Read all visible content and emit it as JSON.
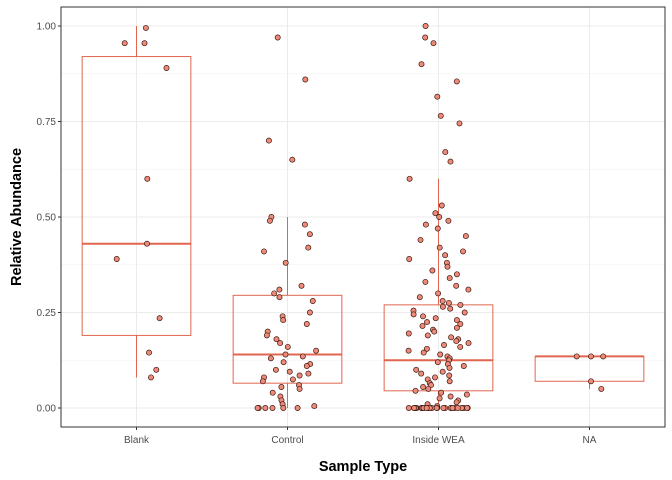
{
  "chart_data": {
    "type": "box",
    "title": "",
    "xlabel": "Sample Type",
    "ylabel": "Relative Abundance",
    "ylim": [
      -0.04,
      1.04
    ],
    "y_ticks": [
      0.0,
      0.25,
      0.5,
      0.75,
      1.0
    ],
    "y_tick_labels": [
      "0.00",
      "0.25",
      "0.50",
      "0.75",
      "1.00"
    ],
    "grid": true,
    "categories": [
      "Blank",
      "Control",
      "Inside WEA",
      "NA"
    ],
    "box_color": "#e0664f",
    "point_fill": "#f08a78",
    "point_stroke": "#3a1a14",
    "boxes": [
      {
        "category": "Blank",
        "lower_whisker": 0.08,
        "q1": 0.19,
        "median": 0.43,
        "q3": 0.92,
        "upper_whisker": 1.0
      },
      {
        "category": "Control",
        "lower_whisker": 0.0,
        "q1": 0.065,
        "median": 0.14,
        "q3": 0.295,
        "upper_whisker": 0.5
      },
      {
        "category": "Inside WEA",
        "lower_whisker": 0.0,
        "q1": 0.045,
        "median": 0.125,
        "q3": 0.27,
        "upper_whisker": 0.6
      },
      {
        "category": "NA",
        "lower_whisker": 0.05,
        "q1": 0.07,
        "median": 0.135,
        "q3": 0.135,
        "upper_whisker": 0.135
      }
    ],
    "points": [
      {
        "category": "Blank",
        "values": [
          0.995,
          0.955,
          0.955,
          0.89,
          0.6,
          0.43,
          0.39,
          0.235,
          0.145,
          0.1,
          0.08
        ]
      },
      {
        "category": "Control",
        "values": [
          0.97,
          0.86,
          0.7,
          0.65,
          0.5,
          0.49,
          0.48,
          0.455,
          0.42,
          0.41,
          0.38,
          0.32,
          0.31,
          0.3,
          0.29,
          0.28,
          0.25,
          0.24,
          0.23,
          0.22,
          0.2,
          0.19,
          0.18,
          0.17,
          0.16,
          0.15,
          0.14,
          0.135,
          0.13,
          0.12,
          0.115,
          0.11,
          0.1,
          0.095,
          0.09,
          0.085,
          0.08,
          0.075,
          0.07,
          0.06,
          0.055,
          0.05,
          0.04,
          0.03,
          0.02,
          0.01,
          0.005,
          0.0,
          0.0,
          0.0,
          0.0,
          0.0,
          0.0
        ]
      },
      {
        "category": "Inside WEA",
        "values": [
          1.0,
          0.97,
          0.955,
          0.9,
          0.855,
          0.815,
          0.765,
          0.745,
          0.67,
          0.645,
          0.6,
          0.53,
          0.51,
          0.5,
          0.49,
          0.48,
          0.47,
          0.45,
          0.44,
          0.42,
          0.41,
          0.4,
          0.39,
          0.38,
          0.37,
          0.36,
          0.35,
          0.34,
          0.33,
          0.32,
          0.31,
          0.3,
          0.29,
          0.28,
          0.275,
          0.27,
          0.265,
          0.26,
          0.255,
          0.25,
          0.245,
          0.24,
          0.235,
          0.23,
          0.225,
          0.22,
          0.215,
          0.21,
          0.205,
          0.2,
          0.195,
          0.19,
          0.185,
          0.18,
          0.175,
          0.17,
          0.165,
          0.16,
          0.155,
          0.15,
          0.145,
          0.14,
          0.135,
          0.13,
          0.125,
          0.12,
          0.115,
          0.11,
          0.105,
          0.1,
          0.095,
          0.09,
          0.085,
          0.08,
          0.075,
          0.07,
          0.065,
          0.06,
          0.055,
          0.05,
          0.045,
          0.04,
          0.035,
          0.03,
          0.025,
          0.02,
          0.015,
          0.01,
          0.005,
          0.0,
          0.0,
          0.0,
          0.0,
          0.0,
          0.0,
          0.0,
          0.0,
          0.0,
          0.0,
          0.0,
          0.0,
          0.0,
          0.0,
          0.0,
          0.0,
          0.0,
          0.0,
          0.0,
          0.0,
          0.0,
          0.0,
          0.0,
          0.0,
          0.0,
          0.0,
          0.0,
          0.0,
          0.0,
          0.0,
          0.0
        ]
      },
      {
        "category": "NA",
        "values": [
          0.135,
          0.135,
          0.135,
          0.07,
          0.05
        ]
      }
    ]
  }
}
